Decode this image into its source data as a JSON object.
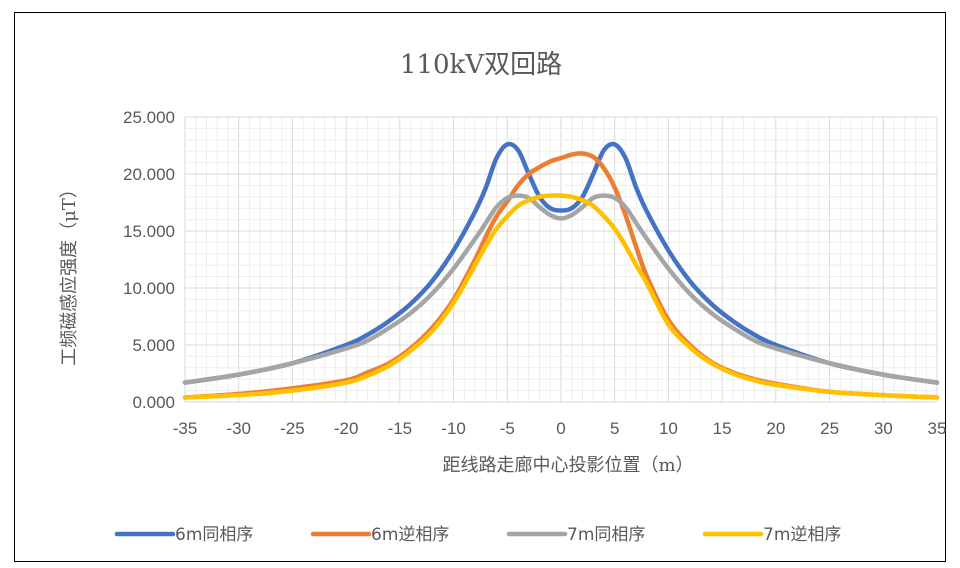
{
  "chart_data": {
    "type": "line",
    "title": "110kV双回路",
    "xlabel": "距线路走廊中心投影位置（m）",
    "ylabel": "工频磁感应强度（μT）",
    "xlim": [
      -35,
      35
    ],
    "ylim": [
      0,
      25
    ],
    "xticks": [
      -35,
      -30,
      -25,
      -20,
      -15,
      -10,
      -5,
      0,
      5,
      10,
      15,
      20,
      25,
      30,
      35
    ],
    "ytick_labels": [
      "0.000",
      "5.000",
      "10.000",
      "15.000",
      "20.000",
      "25.000"
    ],
    "yticks": [
      0,
      5,
      10,
      15,
      20,
      25
    ],
    "grid": "major and minor, both axes",
    "legend_position": "bottom",
    "x": [
      -35,
      -30,
      -25,
      -20,
      -18,
      -16,
      -14,
      -12,
      -10,
      -8,
      -7,
      -6,
      -5,
      -4,
      -3,
      -2,
      -1,
      0,
      1,
      2,
      3,
      4,
      5,
      6,
      7,
      8,
      10,
      12,
      14,
      16,
      18,
      20,
      25,
      30,
      35
    ],
    "series": [
      {
        "name": "6m同相序",
        "color": "#4472C4",
        "values": [
          1.7,
          2.4,
          3.4,
          5.0,
          5.9,
          7.1,
          8.6,
          10.6,
          13.3,
          16.7,
          18.8,
          21.4,
          22.6,
          22.1,
          20.0,
          18.0,
          17.0,
          16.8,
          17.0,
          18.0,
          20.0,
          22.1,
          22.6,
          21.4,
          18.8,
          16.7,
          13.3,
          10.6,
          8.6,
          7.1,
          5.9,
          5.0,
          3.4,
          2.4,
          1.7
        ]
      },
      {
        "name": "6m逆相序",
        "color": "#ED7D31",
        "values": [
          0.4,
          0.7,
          1.2,
          1.9,
          2.6,
          3.4,
          4.7,
          6.5,
          9.0,
          12.5,
          14.5,
          16.3,
          17.6,
          19.0,
          20.0,
          20.6,
          21.1,
          21.4,
          21.7,
          21.8,
          21.5,
          20.5,
          18.8,
          16.4,
          13.6,
          11.0,
          7.2,
          5.0,
          3.5,
          2.6,
          2.0,
          1.6,
          0.9,
          0.6,
          0.4
        ]
      },
      {
        "name": "7m同相序",
        "color": "#A5A5A5",
        "values": [
          1.7,
          2.4,
          3.4,
          4.7,
          5.4,
          6.5,
          7.8,
          9.5,
          11.7,
          14.3,
          15.7,
          17.1,
          17.9,
          18.1,
          17.9,
          17.1,
          16.4,
          16.1,
          16.4,
          17.1,
          17.9,
          18.1,
          17.9,
          17.1,
          15.7,
          14.3,
          11.7,
          9.5,
          7.8,
          6.5,
          5.4,
          4.7,
          3.4,
          2.4,
          1.7
        ]
      },
      {
        "name": "7m逆相序",
        "color": "#FFC000",
        "values": [
          0.4,
          0.6,
          1.0,
          1.7,
          2.3,
          3.2,
          4.5,
          6.2,
          8.7,
          12.0,
          13.7,
          15.2,
          16.3,
          17.2,
          17.7,
          18.0,
          18.1,
          18.1,
          18.0,
          17.7,
          17.2,
          16.3,
          15.2,
          13.7,
          12.0,
          10.4,
          6.8,
          4.8,
          3.4,
          2.5,
          1.9,
          1.5,
          0.9,
          0.6,
          0.4
        ]
      }
    ]
  }
}
